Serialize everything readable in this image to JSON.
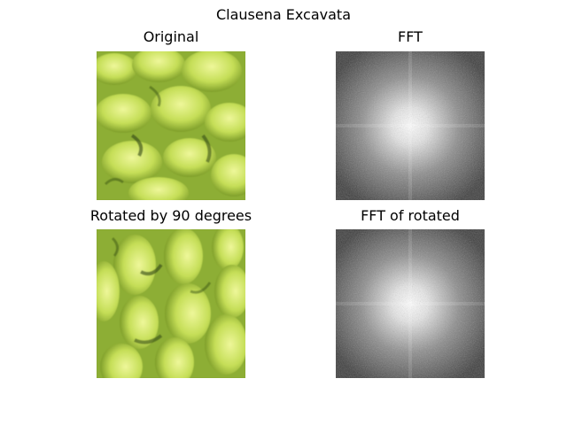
{
  "figure": {
    "title": "Clausena Excavata"
  },
  "panels": [
    {
      "title": "Original",
      "kind": "photo",
      "description": "green leafy plant photo"
    },
    {
      "title": "FFT",
      "kind": "fft",
      "description": "grayscale FFT magnitude spectrum"
    },
    {
      "title": "Rotated by 90 degrees",
      "kind": "photo",
      "description": "rotated green leafy plant photo"
    },
    {
      "title": "FFT of rotated",
      "kind": "fft",
      "description": "grayscale FFT magnitude spectrum"
    }
  ],
  "colors": {
    "leaf_light": "#e2f07a",
    "leaf_mid": "#b9d84a",
    "leaf_dark": "#6f8f22",
    "shadow": "#2f4514",
    "fft_dark": "#2a2a2a",
    "fft_light": "#ffffff"
  }
}
